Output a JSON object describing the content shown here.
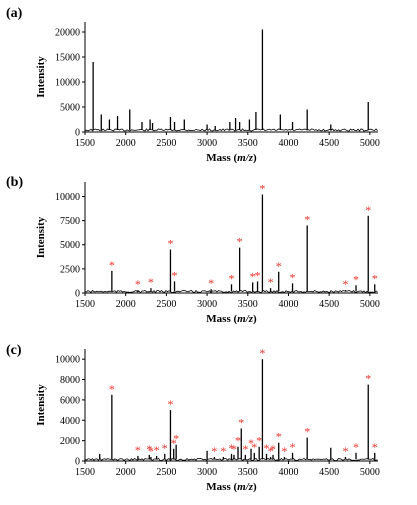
{
  "colors": {
    "spectrum": "#000000",
    "marker": "#e8332a",
    "axis": "#000000"
  },
  "chart_data": [
    {
      "type": "line",
      "panel_label": "(a)",
      "xlabel_main": "Mass (",
      "xlabel_italic": "m/z",
      "xlabel_end": ")",
      "ylabel": "Intensity",
      "xlim": [
        1500,
        5100
      ],
      "ylim": [
        0,
        22000
      ],
      "xticks": [
        "1500",
        "2000",
        "2500",
        "3000",
        "3500",
        "4000",
        "4500",
        "5000"
      ],
      "yticks": [
        "0",
        "5000",
        "10000",
        "15000",
        "20000"
      ],
      "baseline": 400,
      "peaks": [
        {
          "x": 1600,
          "y": 14000
        },
        {
          "x": 1700,
          "y": 3500
        },
        {
          "x": 1800,
          "y": 2500
        },
        {
          "x": 1900,
          "y": 3200
        },
        {
          "x": 2050,
          "y": 4500
        },
        {
          "x": 2200,
          "y": 2000
        },
        {
          "x": 2300,
          "y": 2500
        },
        {
          "x": 2330,
          "y": 1800
        },
        {
          "x": 2550,
          "y": 3000
        },
        {
          "x": 2600,
          "y": 2000
        },
        {
          "x": 2720,
          "y": 2500
        },
        {
          "x": 3000,
          "y": 1500
        },
        {
          "x": 3100,
          "y": 1200
        },
        {
          "x": 3280,
          "y": 2000
        },
        {
          "x": 3350,
          "y": 2800
        },
        {
          "x": 3400,
          "y": 2000
        },
        {
          "x": 3520,
          "y": 2500
        },
        {
          "x": 3600,
          "y": 4000
        },
        {
          "x": 3680,
          "y": 20500
        },
        {
          "x": 3900,
          "y": 3500
        },
        {
          "x": 4050,
          "y": 2000
        },
        {
          "x": 4230,
          "y": 4500
        },
        {
          "x": 4520,
          "y": 1500
        },
        {
          "x": 4980,
          "y": 6000
        }
      ],
      "marked": []
    },
    {
      "type": "line",
      "panel_label": "(b)",
      "xlabel_main": "Mass (",
      "xlabel_italic": "m/z",
      "xlabel_end": ")",
      "ylabel": "Intensity",
      "xlim": [
        1500,
        5100
      ],
      "ylim": [
        0,
        11500
      ],
      "xticks": [
        "1500",
        "2000",
        "2500",
        "3000",
        "3500",
        "4000",
        "4500",
        "5000"
      ],
      "yticks": [
        "0",
        "2500",
        "5000",
        "7500",
        "10000"
      ],
      "baseline": 150,
      "peaks": [
        {
          "x": 1830,
          "y": 2300
        },
        {
          "x": 2150,
          "y": 300
        },
        {
          "x": 2310,
          "y": 500
        },
        {
          "x": 2550,
          "y": 4500
        },
        {
          "x": 2600,
          "y": 1200
        },
        {
          "x": 3050,
          "y": 400
        },
        {
          "x": 3300,
          "y": 900
        },
        {
          "x": 3400,
          "y": 4700
        },
        {
          "x": 3560,
          "y": 1100
        },
        {
          "x": 3620,
          "y": 1200
        },
        {
          "x": 3680,
          "y": 10200
        },
        {
          "x": 3780,
          "y": 500
        },
        {
          "x": 3880,
          "y": 2200
        },
        {
          "x": 4050,
          "y": 1000
        },
        {
          "x": 4230,
          "y": 7000
        },
        {
          "x": 4700,
          "y": 300
        },
        {
          "x": 4830,
          "y": 800
        },
        {
          "x": 4980,
          "y": 8000
        },
        {
          "x": 5060,
          "y": 900
        }
      ],
      "marked": [
        1830,
        2150,
        2310,
        2550,
        2600,
        3050,
        3300,
        3400,
        3560,
        3620,
        3680,
        3780,
        3880,
        4050,
        4230,
        4700,
        4830,
        4980,
        5060
      ]
    },
    {
      "type": "line",
      "panel_label": "(c)",
      "xlabel_main": "Mass (",
      "xlabel_italic": "m/z",
      "xlabel_end": ")",
      "ylabel": "Intensity",
      "xlim": [
        1500,
        5100
      ],
      "ylim": [
        0,
        11000
      ],
      "xticks": [
        "1500",
        "2000",
        "2500",
        "3000",
        "3500",
        "4000",
        "4500",
        "5000"
      ],
      "yticks": [
        "0",
        "2000",
        "4000",
        "6000",
        "8000",
        "10000"
      ],
      "baseline": 150,
      "peaks": [
        {
          "x": 1680,
          "y": 700
        },
        {
          "x": 1830,
          "y": 6500
        },
        {
          "x": 2150,
          "y": 500
        },
        {
          "x": 2290,
          "y": 600
        },
        {
          "x": 2310,
          "y": 400
        },
        {
          "x": 2380,
          "y": 500
        },
        {
          "x": 2480,
          "y": 700
        },
        {
          "x": 2550,
          "y": 5000
        },
        {
          "x": 2590,
          "y": 1200
        },
        {
          "x": 2620,
          "y": 1600
        },
        {
          "x": 3000,
          "y": 1000
        },
        {
          "x": 3090,
          "y": 400
        },
        {
          "x": 3200,
          "y": 400
        },
        {
          "x": 3300,
          "y": 700
        },
        {
          "x": 3330,
          "y": 600
        },
        {
          "x": 3380,
          "y": 1400
        },
        {
          "x": 3420,
          "y": 3200
        },
        {
          "x": 3470,
          "y": 600
        },
        {
          "x": 3540,
          "y": 1200
        },
        {
          "x": 3580,
          "y": 800
        },
        {
          "x": 3640,
          "y": 1400
        },
        {
          "x": 3680,
          "y": 10000
        },
        {
          "x": 3730,
          "y": 700
        },
        {
          "x": 3780,
          "y": 400
        },
        {
          "x": 3810,
          "y": 600
        },
        {
          "x": 3880,
          "y": 1800
        },
        {
          "x": 3950,
          "y": 400
        },
        {
          "x": 4050,
          "y": 800
        },
        {
          "x": 4230,
          "y": 2300
        },
        {
          "x": 4520,
          "y": 1300
        },
        {
          "x": 4700,
          "y": 400
        },
        {
          "x": 4830,
          "y": 800
        },
        {
          "x": 4980,
          "y": 7500
        },
        {
          "x": 5060,
          "y": 800
        }
      ],
      "marked": [
        1830,
        2150,
        2290,
        2310,
        2380,
        2480,
        2550,
        2590,
        2620,
        3090,
        3200,
        3300,
        3330,
        3380,
        3420,
        3470,
        3540,
        3580,
        3640,
        3680,
        3730,
        3780,
        3810,
        3880,
        3950,
        4050,
        4230,
        4700,
        4830,
        4980,
        5060
      ]
    }
  ]
}
